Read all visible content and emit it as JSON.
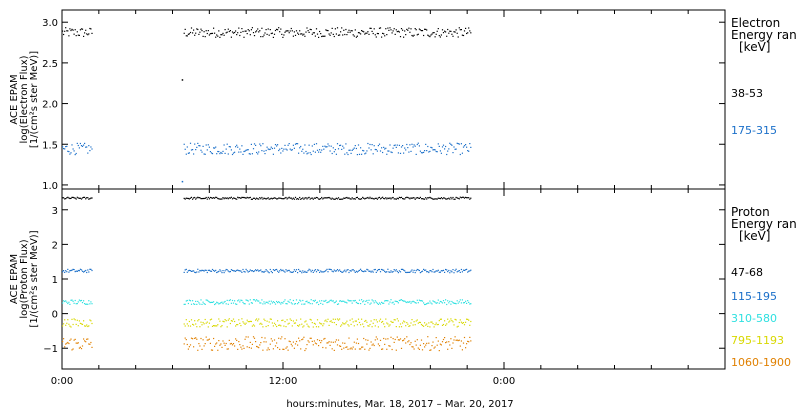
{
  "chart_data": [
    {
      "type": "scatter",
      "panel": "electron",
      "ylabel_lines": [
        "ACE EPAM",
        "log(Electron Flux)",
        "[1/(cm²s ster MeV)]"
      ],
      "ylim": [
        0.95,
        3.15
      ],
      "yticks": [
        1.0,
        1.5,
        2.0,
        2.5,
        3.0
      ],
      "ytick_labels": [
        "1.0",
        "1.5",
        "2.0",
        "2.5",
        "3.0"
      ],
      "legend_title_lines": [
        "Electron",
        "Energy ran",
        "[keV]"
      ],
      "series": [
        {
          "name": "38-53",
          "color": "#000000",
          "segments": [
            {
              "x": [
                0,
                1.6
              ],
              "y": 2.88,
              "jitter": 0.06
            },
            {
              "x": [
                6.6,
                22.2
              ],
              "y": 2.88,
              "jitter": 0.06
            }
          ],
          "outliers": [
            {
              "x": 6.5,
              "y": 2.3
            }
          ]
        },
        {
          "name": "175-315",
          "color": "#1a6fc9",
          "segments": [
            {
              "x": [
                0,
                1.6
              ],
              "y": 1.45,
              "jitter": 0.07
            },
            {
              "x": [
                6.6,
                22.2
              ],
              "y": 1.45,
              "jitter": 0.07
            }
          ],
          "outliers": [
            {
              "x": 6.5,
              "y": 1.05
            }
          ]
        }
      ]
    },
    {
      "type": "scatter",
      "panel": "proton",
      "ylabel_lines": [
        "ACE EPAM",
        "log(Proton Flux)",
        "[1/(cm²s ster MeV)]"
      ],
      "ylim": [
        -1.6,
        3.6
      ],
      "yticks": [
        -1,
        0,
        1,
        2,
        3
      ],
      "ytick_labels": [
        "−1",
        "0",
        "1",
        "2",
        "3"
      ],
      "legend_title_lines": [
        "Proton",
        "Energy ran",
        "[keV]"
      ],
      "series": [
        {
          "name": "47-68",
          "color": "#000000",
          "segments": [
            {
              "x": [
                0,
                1.6
              ],
              "y": 3.35,
              "jitter": 0.03
            },
            {
              "x": [
                6.6,
                22.2
              ],
              "y": 3.35,
              "jitter": 0.03
            }
          ]
        },
        {
          "name": "115-195",
          "color": "#1a6fc9",
          "segments": [
            {
              "x": [
                0,
                1.6
              ],
              "y": 1.25,
              "jitter": 0.05
            },
            {
              "x": [
                6.6,
                22.2
              ],
              "y": 1.25,
              "jitter": 0.05
            }
          ]
        },
        {
          "name": "310-580",
          "color": "#2ee0e0",
          "segments": [
            {
              "x": [
                0,
                1.6
              ],
              "y": 0.35,
              "jitter": 0.07
            },
            {
              "x": [
                6.6,
                22.2
              ],
              "y": 0.35,
              "jitter": 0.07
            }
          ]
        },
        {
          "name": "795-1193",
          "color": "#d8d800",
          "segments": [
            {
              "x": [
                0,
                1.6
              ],
              "y": -0.25,
              "jitter": 0.12
            },
            {
              "x": [
                6.6,
                22.2
              ],
              "y": -0.25,
              "jitter": 0.12
            }
          ]
        },
        {
          "name": "1060-1900",
          "color": "#e08000",
          "segments": [
            {
              "x": [
                0,
                1.6
              ],
              "y": -0.85,
              "jitter": 0.2
            },
            {
              "x": [
                6.6,
                22.2
              ],
              "y": -0.85,
              "jitter": 0.2
            }
          ]
        }
      ]
    }
  ],
  "x_axis": {
    "xlim": [
      0,
      36
    ],
    "ticks": [
      0,
      12,
      24
    ],
    "tick_labels": [
      "0:00",
      "12:00",
      "0:00"
    ],
    "xlabel": "hours:minutes, Mar. 18, 2017 – Mar. 20, 2017"
  }
}
